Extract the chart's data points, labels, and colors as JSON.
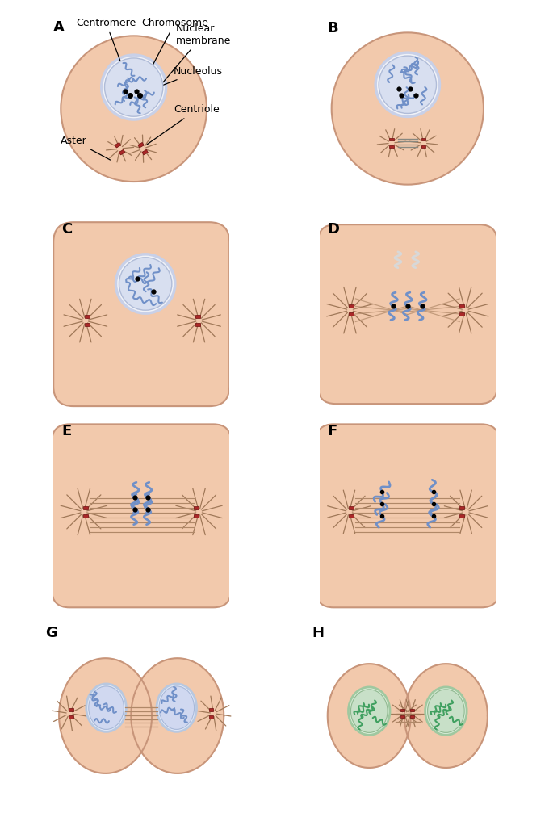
{
  "bg_color": "#FFFFFF",
  "cell_color": "#F2C9AC",
  "cell_edge": "#C8957A",
  "nucleus_outer_color": "#E8EEF8",
  "nucleus_outer_edge": "#C0CCE0",
  "nucleus_inner_color": "#D0D8F0",
  "nucleus_inner_edge": "#A8B8D8",
  "chromosome_color_blue": "#7090C8",
  "chromosome_color_white": "#E8E8E8",
  "chromosome_color_green": "#50A868",
  "centromere_color": "#101010",
  "centriole_color": "#AA2828",
  "spindle_color": "#B08868",
  "aster_color": "#A07858",
  "label_fontsize": 13,
  "annotation_fontsize": 9,
  "labels": [
    "A",
    "B",
    "C",
    "D",
    "E",
    "F",
    "G",
    "H"
  ]
}
